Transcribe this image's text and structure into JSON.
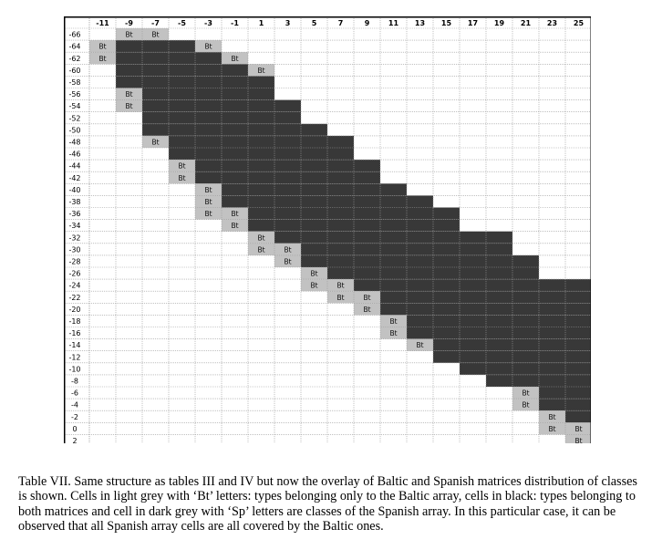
{
  "figure": {
    "columns": [
      -11,
      -9,
      -7,
      -5,
      -3,
      -1,
      1,
      3,
      5,
      7,
      9,
      11,
      13,
      15,
      17,
      19,
      21,
      23,
      25
    ],
    "rows": [
      -66,
      -64,
      -62,
      -60,
      -58,
      -56,
      -54,
      -52,
      -50,
      -48,
      -46,
      -44,
      -42,
      -40,
      -38,
      -36,
      -34,
      -32,
      -30,
      -28,
      -26,
      -24,
      -22,
      -20,
      -18,
      -16,
      -14,
      -12,
      -10,
      -8,
      -6,
      -4,
      -2,
      0,
      2
    ],
    "bt_label": "Bt",
    "colors": {
      "black_cell": "#383838",
      "bt_cell": "#c2c2c2",
      "grid": "#9a9a9a",
      "empty": "#ffffff"
    },
    "cells": [
      {
        "row": -66,
        "black": [],
        "bt": [
          -9,
          -7
        ]
      },
      {
        "row": -64,
        "black": [
          -9,
          -7,
          -5
        ],
        "bt": [
          -11,
          -3
        ]
      },
      {
        "row": -62,
        "black": [
          -9,
          -7,
          -5,
          -3
        ],
        "bt": [
          -11,
          -1
        ]
      },
      {
        "row": -60,
        "black": [
          -9,
          -7,
          -5,
          -3,
          -1
        ],
        "bt": [
          1
        ]
      },
      {
        "row": -58,
        "black": [
          -9,
          -7,
          -5,
          -3,
          -1,
          1
        ],
        "bt": []
      },
      {
        "row": -56,
        "black": [
          -7,
          -5,
          -3,
          -1,
          1
        ],
        "bt": [
          -9
        ]
      },
      {
        "row": -54,
        "black": [
          -7,
          -5,
          -3,
          -1,
          1,
          3
        ],
        "bt": [
          -9
        ]
      },
      {
        "row": -52,
        "black": [
          -7,
          -5,
          -3,
          -1,
          1,
          3
        ],
        "bt": []
      },
      {
        "row": -50,
        "black": [
          -7,
          -5,
          -3,
          -1,
          1,
          3,
          5
        ],
        "bt": []
      },
      {
        "row": -48,
        "black": [
          -5,
          -3,
          -1,
          1,
          3,
          5,
          7
        ],
        "bt": [
          -7
        ]
      },
      {
        "row": -46,
        "black": [
          -5,
          -3,
          -1,
          1,
          3,
          5,
          7
        ],
        "bt": []
      },
      {
        "row": -44,
        "black": [
          -3,
          -1,
          1,
          3,
          5,
          7,
          9
        ],
        "bt": [
          -5
        ]
      },
      {
        "row": -42,
        "black": [
          -3,
          -1,
          1,
          3,
          5,
          7,
          9
        ],
        "bt": [
          -5
        ]
      },
      {
        "row": -40,
        "black": [
          -1,
          1,
          3,
          5,
          7,
          9,
          11
        ],
        "bt": [
          -3
        ]
      },
      {
        "row": -38,
        "black": [
          -1,
          1,
          3,
          5,
          7,
          9,
          11,
          13
        ],
        "bt": [
          -3
        ]
      },
      {
        "row": -36,
        "black": [
          1,
          3,
          5,
          7,
          9,
          11,
          13,
          15
        ],
        "bt": [
          -3,
          -1
        ]
      },
      {
        "row": -34,
        "black": [
          1,
          3,
          5,
          7,
          9,
          11,
          13,
          15
        ],
        "bt": [
          -1
        ]
      },
      {
        "row": -32,
        "black": [
          3,
          5,
          7,
          9,
          11,
          13,
          15,
          17,
          19
        ],
        "bt": [
          1
        ]
      },
      {
        "row": -30,
        "black": [
          5,
          7,
          9,
          11,
          13,
          15,
          17,
          19
        ],
        "bt": [
          1,
          3
        ]
      },
      {
        "row": -28,
        "black": [
          5,
          7,
          9,
          11,
          13,
          15,
          17,
          19,
          21
        ],
        "bt": [
          3
        ]
      },
      {
        "row": -26,
        "black": [
          7,
          9,
          11,
          13,
          15,
          17,
          19,
          21
        ],
        "bt": [
          5
        ]
      },
      {
        "row": -24,
        "black": [
          9,
          11,
          13,
          15,
          17,
          19,
          21,
          23,
          25
        ],
        "bt": [
          5,
          7
        ]
      },
      {
        "row": -22,
        "black": [
          11,
          13,
          15,
          17,
          19,
          21,
          23,
          25
        ],
        "bt": [
          7,
          9
        ]
      },
      {
        "row": -20,
        "black": [
          11,
          13,
          15,
          17,
          19,
          21,
          23,
          25
        ],
        "bt": [
          9
        ]
      },
      {
        "row": -18,
        "black": [
          13,
          15,
          17,
          19,
          21,
          23,
          25
        ],
        "bt": [
          11
        ]
      },
      {
        "row": -16,
        "black": [
          13,
          15,
          17,
          19,
          21,
          23,
          25
        ],
        "bt": [
          11
        ]
      },
      {
        "row": -14,
        "black": [
          15,
          17,
          19,
          21,
          23,
          25
        ],
        "bt": [
          13
        ]
      },
      {
        "row": -12,
        "black": [
          15,
          17,
          19,
          21,
          23,
          25
        ],
        "bt": []
      },
      {
        "row": -10,
        "black": [
          17,
          19,
          21,
          23,
          25
        ],
        "bt": []
      },
      {
        "row": -8,
        "black": [
          19,
          21,
          23,
          25
        ],
        "bt": []
      },
      {
        "row": -6,
        "black": [
          23,
          25
        ],
        "bt": [
          21
        ]
      },
      {
        "row": -4,
        "black": [
          23,
          25
        ],
        "bt": [
          21
        ]
      },
      {
        "row": -2,
        "black": [
          25
        ],
        "bt": [
          23
        ]
      },
      {
        "row": 0,
        "black": [],
        "bt": [
          23,
          25
        ]
      },
      {
        "row": 2,
        "black": [],
        "bt": [
          25
        ]
      }
    ]
  },
  "caption": "Table VII. Same structure as tables III and IV but now the overlay of Baltic and Spanish matrices distribution of classes is shown. Cells in light grey with ‘Bt’ letters: types belonging only to the Baltic array, cells in black: types belonging to both matrices and cell in dark grey with ‘Sp’ letters are classes of the Spanish array. In this particular case, it can be observed that all Spanish array cells are all covered by the Baltic ones."
}
